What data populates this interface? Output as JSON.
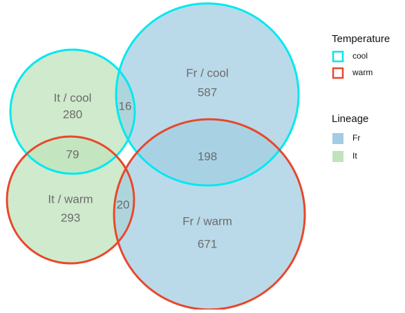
{
  "chart_data": {
    "type": "venn",
    "sets": [
      {
        "name": "It / cool",
        "value": 280,
        "lineage": 1,
        "temperature": 0
      },
      {
        "name": "Fr / cool",
        "value": 587,
        "lineage": 0,
        "temperature": 0
      },
      {
        "name": "It / warm",
        "value": 293,
        "lineage": 1,
        "temperature": 1
      },
      {
        "name": "Fr / warm",
        "value": 671,
        "lineage": 0,
        "temperature": 1
      }
    ],
    "overlaps": [
      {
        "sets": [
          0,
          1
        ],
        "value": 16
      },
      {
        "sets": [
          0,
          2
        ],
        "value": 79
      },
      {
        "sets": [
          1,
          3
        ],
        "value": 198
      },
      {
        "sets": [
          2,
          3
        ],
        "value": 20
      }
    ],
    "legend": {
      "temperature": {
        "title": "Temperature",
        "items": [
          {
            "name": "cool",
            "color": "#00e8f0"
          },
          {
            "name": "warm",
            "color": "#e8472b"
          }
        ]
      },
      "lineage": {
        "title": "Lineage",
        "items": [
          {
            "name": "Fr",
            "color": "#a3cde2"
          },
          {
            "name": "It",
            "color": "#bfe3bb"
          }
        ]
      }
    }
  }
}
